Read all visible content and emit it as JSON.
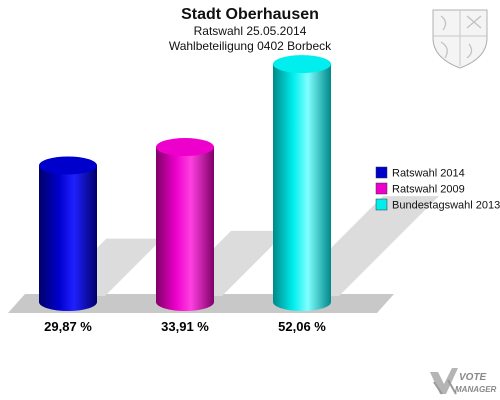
{
  "header": {
    "title": "Stadt Oberhausen",
    "subtitle1": "Ratswahl 25.05.2014",
    "subtitle2": "Wahlbeteiligung 0402 Borbeck"
  },
  "chart_data": {
    "type": "bar",
    "title": "Stadt Oberhausen",
    "subtitle": [
      "Ratswahl 25.05.2014",
      "Wahlbeteiligung 0402 Borbeck"
    ],
    "categories": [
      "Ratswahl 2014",
      "Ratswahl 2009",
      "Bundestagswahl 2013"
    ],
    "series": [
      {
        "name": "Ratswahl 2014",
        "value": 29.87,
        "label": "29,87 %",
        "color": "#0000cc",
        "dark": "#00006a",
        "light": "#2020ff"
      },
      {
        "name": "Ratswahl 2009",
        "value": 33.91,
        "label": "33,91 %",
        "color": "#ee00cc",
        "dark": "#800068",
        "light": "#ff40e0"
      },
      {
        "name": "Bundestagswahl 2013",
        "value": 52.06,
        "label": "52,06 %",
        "color": "#00eeee",
        "dark": "#008888",
        "light": "#80ffff"
      }
    ],
    "legend": {
      "position": "right"
    },
    "grid": false,
    "ylim": [
      0,
      60
    ]
  },
  "brand": {
    "line1": "VOTE",
    "line2": "MANAGER",
    "icon": "vote-manager-logo-icon",
    "crest": "coat-of-arms-icon"
  }
}
